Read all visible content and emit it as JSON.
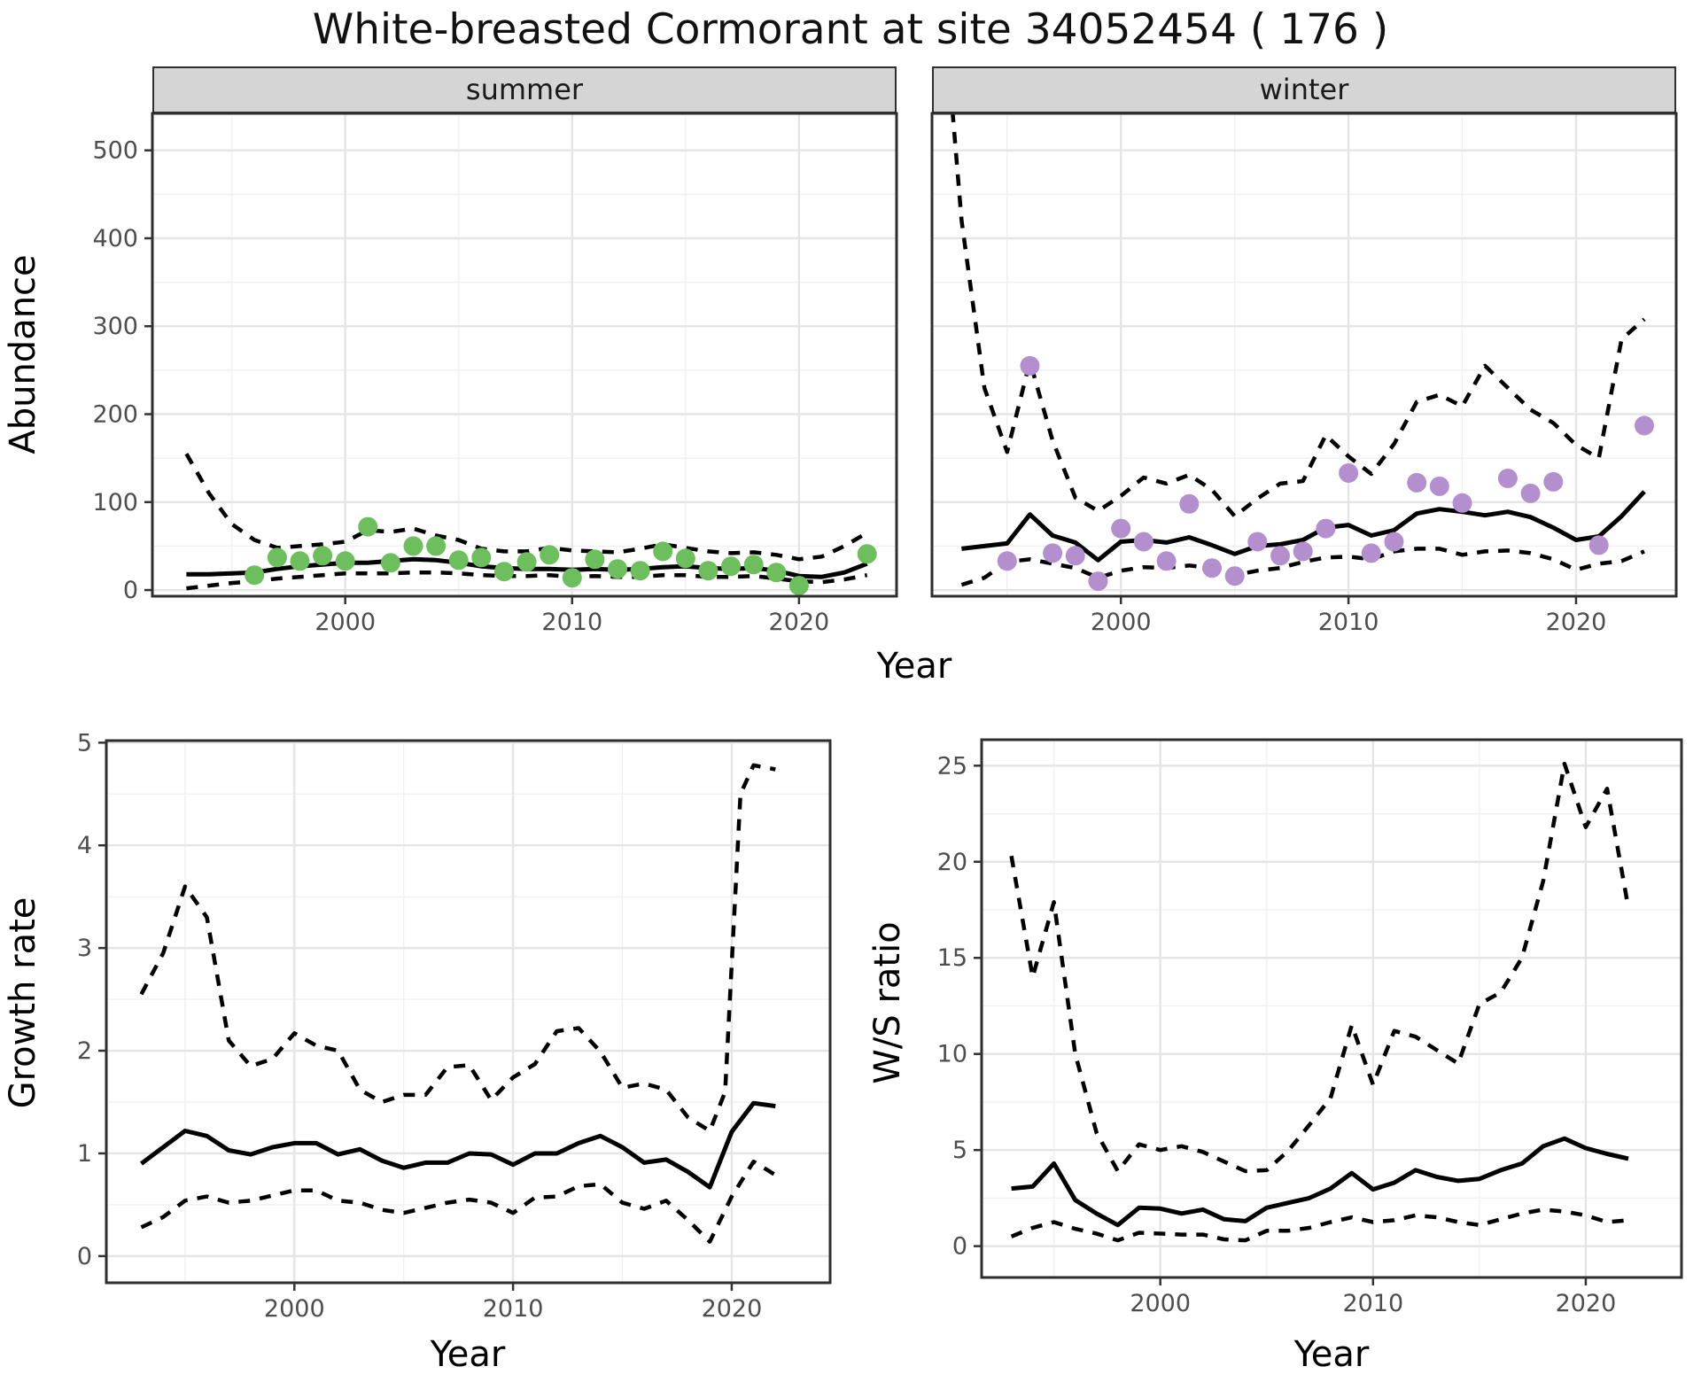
{
  "title": "White-breasted Cormorant at site 34052454 ( 176 )",
  "axes": {
    "year_label": "Year",
    "abundance_label": "Abundance",
    "growth_label": "Growth rate",
    "ws_label": "W/S ratio"
  },
  "colors": {
    "summer_point": "#6dbe5c",
    "winter_point": "#b48fce",
    "line": "#000000",
    "strip_bg": "#d5d5d5",
    "strip_border": "#2e2e2e",
    "panel_border": "#2e2e2e",
    "grid_major": "#e5e5e5",
    "grid_minor": "#f0f0f0",
    "tick_label": "#4d4d4d"
  },
  "chart_data": [
    {
      "id": "abundance-summer",
      "type": "line",
      "facet_label": "summer",
      "xlabel": "Year",
      "ylabel": "Abundance",
      "xlim": [
        1991.5,
        2024.3
      ],
      "ylim": [
        -7,
        542
      ],
      "xticks": [
        2000,
        2010,
        2020
      ],
      "xticks_minor": [
        1995,
        2005,
        2015
      ],
      "yticks": [
        0,
        100,
        200,
        300,
        400,
        500
      ],
      "yticks_minor": [
        50,
        150,
        250,
        350,
        450
      ],
      "series": [
        {
          "name": "median",
          "style": "solid",
          "x": [
            1993,
            1994,
            1995,
            1996,
            1997,
            1998,
            1999,
            2000,
            2001,
            2002,
            2003,
            2004,
            2005,
            2006,
            2007,
            2008,
            2009,
            2010,
            2011,
            2012,
            2013,
            2014,
            2015,
            2016,
            2017,
            2018,
            2019,
            2020,
            2021,
            2022,
            2023
          ],
          "y": [
            18,
            18,
            19,
            20,
            24,
            27,
            29,
            31,
            31,
            33,
            35,
            34,
            31,
            27,
            25,
            24,
            24,
            23,
            24,
            23,
            24,
            26,
            27,
            25,
            24,
            25,
            22,
            16,
            15,
            20,
            30
          ]
        },
        {
          "name": "upper-ci",
          "style": "dashed",
          "x": [
            1993,
            1994,
            1995,
            1996,
            1997,
            1998,
            1999,
            2000,
            2001,
            2002,
            2003,
            2004,
            2005,
            2006,
            2007,
            2008,
            2009,
            2010,
            2011,
            2012,
            2013,
            2014,
            2015,
            2016,
            2017,
            2018,
            2019,
            2020,
            2021,
            2022,
            2023
          ],
          "y": [
            155,
            110,
            75,
            57,
            48,
            50,
            52,
            55,
            68,
            66,
            70,
            62,
            57,
            47,
            44,
            44,
            48,
            45,
            44,
            43,
            47,
            52,
            48,
            44,
            42,
            43,
            40,
            35,
            38,
            50,
            65
          ]
        },
        {
          "name": "lower-ci",
          "style": "dashed",
          "x": [
            1993,
            1994,
            1995,
            1996,
            1997,
            1998,
            1999,
            2000,
            2001,
            2002,
            2003,
            2004,
            2005,
            2006,
            2007,
            2008,
            2009,
            2010,
            2011,
            2012,
            2013,
            2014,
            2015,
            2016,
            2017,
            2018,
            2019,
            2020,
            2021,
            2022,
            2023
          ],
          "y": [
            2,
            5,
            8,
            10,
            13,
            15,
            17,
            19,
            19,
            19,
            20,
            20,
            19,
            17,
            16,
            16,
            17,
            15,
            16,
            15,
            15,
            17,
            17,
            15,
            15,
            16,
            13,
            10,
            9,
            12,
            17
          ]
        }
      ],
      "points": {
        "name": "observed-summer-abundance",
        "color": "#6dbe5c",
        "x": [
          1996,
          1997,
          1998,
          1999,
          2000,
          2001,
          2002,
          2003,
          2004,
          2005,
          2006,
          2007,
          2008,
          2009,
          2010,
          2011,
          2012,
          2013,
          2014,
          2015,
          2016,
          2017,
          2018,
          2019,
          2020,
          2023
        ],
        "y": [
          17,
          37,
          33,
          39,
          33,
          72,
          31,
          50,
          50,
          34,
          37,
          21,
          32,
          40,
          14,
          35,
          24,
          22,
          44,
          36,
          22,
          27,
          29,
          20,
          5,
          41
        ]
      }
    },
    {
      "id": "abundance-winter",
      "type": "line",
      "facet_label": "winter",
      "xlabel": "Year",
      "ylabel": "Abundance",
      "xlim": [
        1991.7,
        2024.4
      ],
      "ylim": [
        -7,
        542
      ],
      "xticks": [
        2000,
        2010,
        2020
      ],
      "xticks_minor": [
        1995,
        2005,
        2015
      ],
      "yticks": [
        0,
        100,
        200,
        300,
        400,
        500
      ],
      "yticks_minor": [
        50,
        150,
        250,
        350,
        450
      ],
      "series": [
        {
          "name": "median",
          "style": "solid",
          "x": [
            1993,
            1994,
            1995,
            1996,
            1997,
            1998,
            1999,
            2000,
            2001,
            2002,
            2003,
            2004,
            2005,
            2006,
            2007,
            2008,
            2009,
            2010,
            2011,
            2012,
            2013,
            2014,
            2015,
            2016,
            2017,
            2018,
            2019,
            2020,
            2021,
            2022,
            2023
          ],
          "y": [
            47,
            50,
            53,
            86,
            62,
            54,
            34,
            55,
            57,
            54,
            60,
            51,
            41,
            50,
            52,
            57,
            71,
            74,
            62,
            68,
            87,
            92,
            89,
            85,
            89,
            83,
            71,
            57,
            61,
            84,
            112
          ]
        },
        {
          "name": "upper-ci",
          "style": "dashed",
          "x": [
            1992.6,
            1993,
            1994,
            1995,
            1996,
            1997,
            1998,
            1999,
            2000,
            2001,
            2002,
            2003,
            2004,
            2005,
            2006,
            2007,
            2008,
            2009,
            2010,
            2011,
            2012,
            2013,
            2014,
            2015,
            2016,
            2017,
            2018,
            2019,
            2020,
            2021,
            2022,
            2023
          ],
          "y": [
            545,
            420,
            230,
            157,
            260,
            170,
            105,
            90,
            107,
            128,
            121,
            131,
            114,
            84,
            104,
            121,
            124,
            176,
            152,
            132,
            166,
            214,
            222,
            209,
            255,
            230,
            205,
            190,
            165,
            150,
            285,
            308
          ]
        },
        {
          "name": "lower-ci",
          "style": "dashed",
          "x": [
            1993,
            1994,
            1995,
            1996,
            1997,
            1998,
            1999,
            2000,
            2001,
            2002,
            2003,
            2004,
            2005,
            2006,
            2007,
            2008,
            2009,
            2010,
            2011,
            2012,
            2013,
            2014,
            2015,
            2016,
            2017,
            2018,
            2019,
            2020,
            2021,
            2022,
            2023
          ],
          "y": [
            6,
            14,
            32,
            35,
            30,
            25,
            14,
            22,
            26,
            25,
            28,
            25,
            17,
            22,
            25,
            32,
            37,
            38,
            35,
            44,
            47,
            47,
            40,
            44,
            45,
            42,
            35,
            23,
            30,
            33,
            44
          ]
        }
      ],
      "points": {
        "name": "observed-winter-abundance",
        "color": "#b48fce",
        "x": [
          1995,
          1996,
          1997,
          1998,
          1999,
          2000,
          2001,
          2002,
          2003,
          2004,
          2005,
          2006,
          2007,
          2008,
          2009,
          2010,
          2011,
          2012,
          2013,
          2014,
          2015,
          2017,
          2018,
          2019,
          2021,
          2023
        ],
        "y": [
          33,
          255,
          42,
          39,
          10,
          70,
          55,
          33,
          98,
          25,
          16,
          55,
          39,
          44,
          70,
          133,
          42,
          55,
          122,
          118,
          99,
          127,
          110,
          123,
          51,
          187
        ]
      }
    },
    {
      "id": "growth-rate",
      "type": "line",
      "facet_label": null,
      "xlabel": "Year",
      "ylabel": "Growth rate",
      "xlim": [
        1991.4,
        2024.5
      ],
      "ylim": [
        -0.26,
        5.02
      ],
      "xticks": [
        2000,
        2010,
        2020
      ],
      "xticks_minor": [
        1995,
        2005,
        2015
      ],
      "yticks": [
        0,
        1,
        2,
        3,
        4,
        5
      ],
      "yticks_minor": [
        0.5,
        1.5,
        2.5,
        3.5,
        4.5
      ],
      "series": [
        {
          "name": "median",
          "style": "solid",
          "x": [
            1993,
            1994,
            1995,
            1996,
            1997,
            1998,
            1999,
            2000,
            2001,
            2002,
            2003,
            2004,
            2005,
            2006,
            2007,
            2008,
            2009,
            2010,
            2011,
            2012,
            2013,
            2014,
            2015,
            2016,
            2017,
            2018,
            2019,
            2020,
            2021,
            2022
          ],
          "y": [
            0.9,
            1.06,
            1.22,
            1.17,
            1.03,
            0.99,
            1.06,
            1.1,
            1.1,
            0.99,
            1.04,
            0.93,
            0.86,
            0.91,
            0.91,
            1.0,
            0.99,
            0.89,
            1.0,
            1.0,
            1.1,
            1.17,
            1.06,
            0.91,
            0.94,
            0.82,
            0.67,
            1.21,
            1.49,
            1.46
          ]
        },
        {
          "name": "upper-ci",
          "style": "dashed",
          "x": [
            1993,
            1994,
            1995,
            1996,
            1997,
            1998,
            1999,
            2000,
            2001,
            2002,
            2003,
            2004,
            2005,
            2006,
            2007,
            2008,
            2009,
            2010,
            2011,
            2012,
            2013,
            2014,
            2015,
            2016,
            2017,
            2018,
            2019,
            2019.7,
            2020.4,
            2021,
            2022
          ],
          "y": [
            2.55,
            2.95,
            3.6,
            3.3,
            2.1,
            1.85,
            1.92,
            2.17,
            2.05,
            2.0,
            1.62,
            1.5,
            1.57,
            1.57,
            1.84,
            1.86,
            1.52,
            1.74,
            1.87,
            2.19,
            2.22,
            1.99,
            1.64,
            1.68,
            1.62,
            1.35,
            1.22,
            1.6,
            4.5,
            4.78,
            4.74
          ]
        },
        {
          "name": "lower-ci",
          "style": "dashed",
          "x": [
            1993,
            1994,
            1995,
            1996,
            1997,
            1998,
            1999,
            2000,
            2001,
            2002,
            2003,
            2004,
            2005,
            2006,
            2007,
            2008,
            2009,
            2010,
            2011,
            2012,
            2013,
            2014,
            2015,
            2016,
            2017,
            2018,
            2019,
            2020,
            2021,
            2022
          ],
          "y": [
            0.28,
            0.38,
            0.54,
            0.58,
            0.52,
            0.54,
            0.59,
            0.64,
            0.64,
            0.54,
            0.52,
            0.45,
            0.42,
            0.47,
            0.52,
            0.55,
            0.52,
            0.42,
            0.57,
            0.58,
            0.68,
            0.7,
            0.52,
            0.46,
            0.54,
            0.35,
            0.14,
            0.58,
            0.92,
            0.79
          ]
        }
      ],
      "points": null
    },
    {
      "id": "ws-ratio",
      "type": "line",
      "facet_label": null,
      "xlabel": "Year",
      "ylabel": "W/S ratio",
      "xlim": [
        1991.6,
        2024.5
      ],
      "ylim": [
        -1.63,
        26.35
      ],
      "xticks": [
        2000,
        2010,
        2020
      ],
      "xticks_minor": [
        1995,
        2005,
        2015
      ],
      "yticks": [
        0,
        5,
        10,
        15,
        20,
        25
      ],
      "yticks_minor": [
        2.5,
        7.5,
        12.5,
        17.5,
        22.5
      ],
      "series": [
        {
          "name": "median",
          "style": "solid",
          "x": [
            1993,
            1994,
            1995,
            1996,
            1997,
            1998,
            1999,
            2000,
            2001,
            2002,
            2003,
            2004,
            2005,
            2006,
            2007,
            2008,
            2009,
            2010,
            2011,
            2012,
            2013,
            2014,
            2015,
            2016,
            2017,
            2018,
            2019,
            2020,
            2021,
            2022
          ],
          "y": [
            3.0,
            3.1,
            4.3,
            2.4,
            1.7,
            1.1,
            2.0,
            1.95,
            1.7,
            1.9,
            1.4,
            1.3,
            2.0,
            2.25,
            2.5,
            3.0,
            3.8,
            2.95,
            3.3,
            3.95,
            3.6,
            3.4,
            3.5,
            3.95,
            4.3,
            5.2,
            5.6,
            5.1,
            4.8,
            4.55
          ]
        },
        {
          "name": "upper-ci",
          "style": "dashed",
          "x": [
            1993,
            1994,
            1995,
            1996,
            1997,
            1998,
            1999,
            2000,
            2001,
            2002,
            2003,
            2004,
            2005,
            2006,
            2007,
            2008,
            2009,
            2010,
            2011,
            2012,
            2013,
            2014,
            2015,
            2016,
            2017,
            2018,
            2019,
            2020,
            2021,
            2022
          ],
          "y": [
            20.3,
            14.0,
            17.9,
            10.0,
            5.9,
            3.9,
            5.3,
            5.0,
            5.2,
            4.9,
            4.4,
            3.9,
            3.95,
            4.95,
            6.3,
            7.7,
            11.5,
            8.4,
            11.2,
            10.9,
            10.2,
            9.5,
            12.6,
            13.2,
            15.0,
            19.0,
            25.1,
            21.8,
            23.8,
            17.6
          ]
        },
        {
          "name": "lower-ci",
          "style": "dashed",
          "x": [
            1993,
            1994,
            1995,
            1996,
            1997,
            1998,
            1999,
            2000,
            2001,
            2002,
            2003,
            2004,
            2005,
            2006,
            2007,
            2008,
            2009,
            2010,
            2011,
            2012,
            2013,
            2014,
            2015,
            2016,
            2017,
            2018,
            2019,
            2020,
            2021,
            2022
          ],
          "y": [
            0.5,
            0.95,
            1.25,
            0.9,
            0.65,
            0.3,
            0.7,
            0.65,
            0.6,
            0.6,
            0.35,
            0.3,
            0.8,
            0.8,
            0.95,
            1.25,
            1.5,
            1.25,
            1.35,
            1.6,
            1.5,
            1.25,
            1.1,
            1.4,
            1.7,
            1.9,
            1.8,
            1.6,
            1.25,
            1.35
          ]
        }
      ],
      "points": null
    }
  ]
}
